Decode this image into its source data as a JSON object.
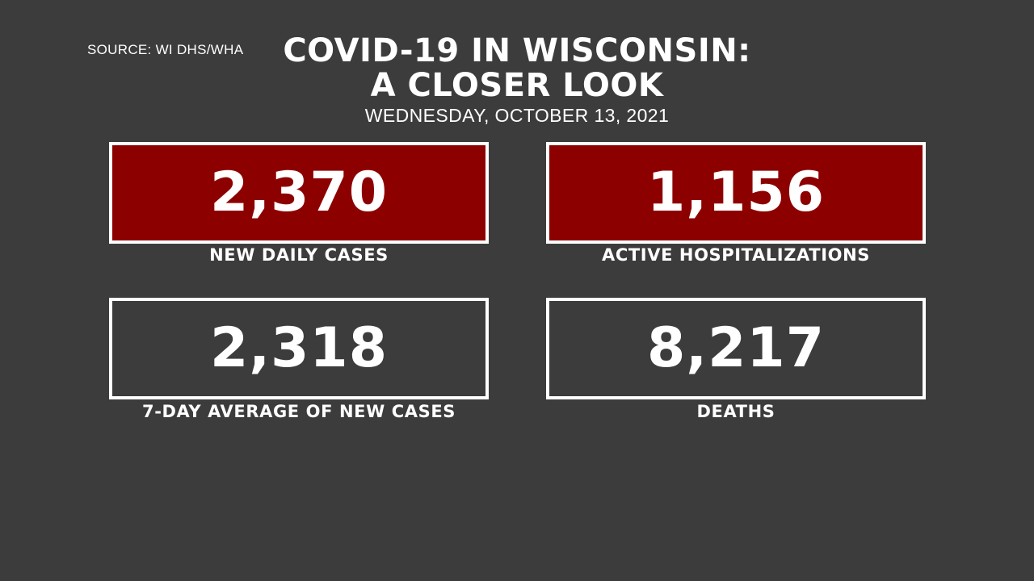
{
  "source": "SOURCE: WI DHS/WHA",
  "title_line1": "COVID-19 IN WISCONSIN:",
  "title_line2": "A CLOSER LOOK",
  "date": "WEDNESDAY, OCTOBER 13, 2021",
  "colors": {
    "background": "#3c3c3c",
    "highlight_box": "#8d0000",
    "text": "#ffffff"
  },
  "stats": [
    {
      "value": "2,370",
      "label": "NEW DAILY CASES"
    },
    {
      "value": "1,156",
      "label": "ACTIVE HOSPITALIZATIONS"
    },
    {
      "value": "2,318",
      "label": "7-DAY AVERAGE OF NEW CASES"
    },
    {
      "value": "8,217",
      "label": "DEATHS"
    }
  ]
}
